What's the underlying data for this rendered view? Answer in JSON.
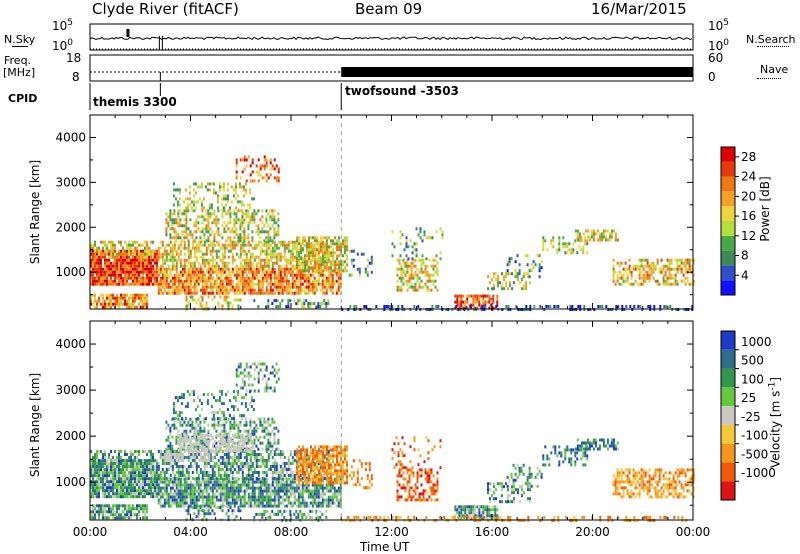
{
  "header": {
    "station": "Clyde River (fitACF)",
    "beam": "Beam 09",
    "date": "16/Mar/2015"
  },
  "top_panels": {
    "left_label_sky": "N.Sky",
    "left_label_freq": "Freq.",
    "left_label_freq_unit": "[MHz]",
    "left_label_cpid": "CPID",
    "right_label_search": "N.Search",
    "right_label_nave": "Nave",
    "sky_ticks": [
      "10^5",
      "10^0"
    ],
    "search_ticks": [
      "10^5",
      "10^0"
    ],
    "freq_ticks": [
      "18",
      "8"
    ],
    "nave_ticks": [
      "60",
      "0"
    ],
    "cpid_segments": [
      {
        "label": "themis 3300",
        "start_hour": 0
      },
      {
        "label": "twofsound -3503",
        "start_hour": 10
      }
    ]
  },
  "colors": {
    "power_scale": [
      "#1010ff",
      "#3050c8",
      "#3c8c5a",
      "#46aa46",
      "#b4dc3c",
      "#f0d23c",
      "#f5a028",
      "#f07814",
      "#e63c0a",
      "#dc0000"
    ],
    "velocity_scale": [
      "#e01414",
      "#f05a0a",
      "#f5961e",
      "#f5c83c",
      "#c8c8c0",
      "#64c83c",
      "#329650",
      "#2d6e8c",
      "#1e3cc8"
    ]
  },
  "chart_data": [
    {
      "type": "heatmap",
      "title": "Power",
      "xlabel": "",
      "ylabel": "Slant Range [km]",
      "xlim": [
        0,
        24
      ],
      "ylim": [
        180,
        4500
      ],
      "x_ticks": [
        "00:00",
        "04:00",
        "08:00",
        "12:00",
        "16:00",
        "20:00",
        "00:00"
      ],
      "y_ticks": [
        1000,
        2000,
        3000,
        4000
      ],
      "colorbar_label": "Power [dB]",
      "colorbar_ticks": [
        4,
        8,
        12,
        16,
        20,
        24,
        28
      ],
      "colorbar_range": [
        0,
        30
      ]
    },
    {
      "type": "heatmap",
      "title": "Velocity",
      "xlabel": "Time UT",
      "ylabel": "Slant Range [km]",
      "xlim": [
        0,
        24
      ],
      "ylim": [
        180,
        4500
      ],
      "x_ticks": [
        "00:00",
        "04:00",
        "08:00",
        "12:00",
        "16:00",
        "20:00",
        "00:00"
      ],
      "y_ticks": [
        1000,
        2000,
        3000,
        4000
      ],
      "colorbar_label": "Velocity [m s^-1]",
      "colorbar_ticks": [
        "1000",
        "500",
        "100",
        "25",
        "-25",
        "-100",
        "-500",
        "-1000"
      ]
    }
  ]
}
